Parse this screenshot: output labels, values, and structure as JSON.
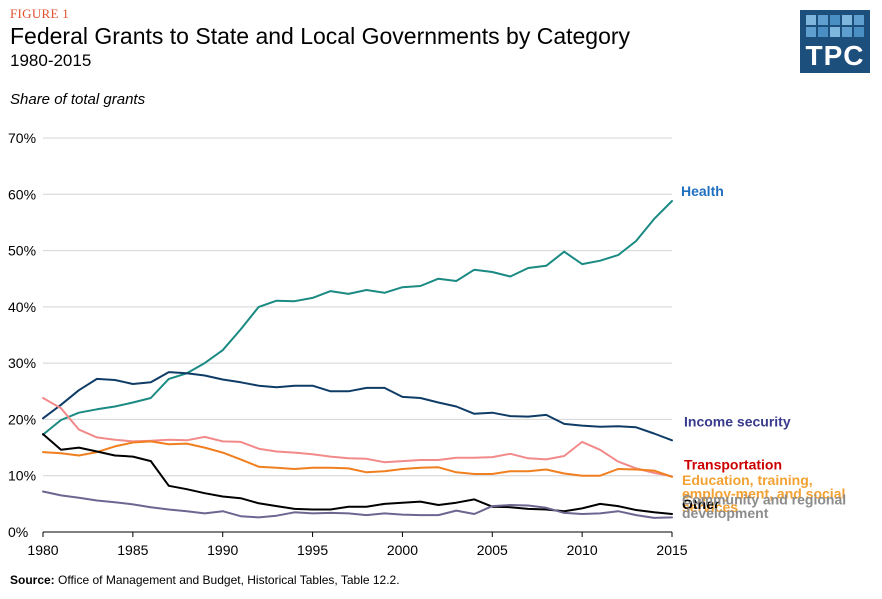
{
  "header": {
    "figure_label": "FIGURE 1",
    "title": "Federal Grants to State and Local Governments by Category",
    "subtitle": "1980-2015",
    "y_axis_note": "Share of total grants"
  },
  "logo": {
    "text": "TPC",
    "color": "#1d4f7c"
  },
  "footer": {
    "source_label": "Source:",
    "source_text": " Office of Management and Budget, Historical Tables, Table 12.2."
  },
  "chart_data": {
    "type": "line",
    "title": "Federal Grants to State and Local Governments by Category",
    "subtitle": "1980-2015",
    "ylabel": "Share of total grants",
    "xlim": [
      1980,
      2015
    ],
    "ylim": [
      0,
      70
    ],
    "x_ticks": [
      1980,
      1985,
      1990,
      1995,
      2000,
      2005,
      2010,
      2015
    ],
    "y_ticks": [
      "0%",
      "10%",
      "20%",
      "30%",
      "40%",
      "50%",
      "60%",
      "70%"
    ],
    "grid": "horizontal",
    "x": [
      1980,
      1981,
      1982,
      1983,
      1984,
      1985,
      1986,
      1987,
      1988,
      1989,
      1990,
      1991,
      1992,
      1993,
      1994,
      1995,
      1996,
      1997,
      1998,
      1999,
      2000,
      2001,
      2002,
      2003,
      2004,
      2005,
      2006,
      2007,
      2008,
      2009,
      2010,
      2011,
      2012,
      2013,
      2014,
      2015
    ],
    "series": [
      {
        "name": "Health",
        "label_lines": [
          "Health"
        ],
        "color": "#1a8a83",
        "label_color": "#1f6fbf",
        "values": [
          17.3,
          19.9,
          21.2,
          21.8,
          22.3,
          23.0,
          23.8,
          27.2,
          28.2,
          30.0,
          32.3,
          36.0,
          40.0,
          41.1,
          41.0,
          41.6,
          42.8,
          42.3,
          43.0,
          42.5,
          43.5,
          43.7,
          45.0,
          44.6,
          46.6,
          46.2,
          45.4,
          46.9,
          47.3,
          49.8,
          47.6,
          48.2,
          49.2,
          51.7,
          55.6,
          58.8
        ]
      },
      {
        "name": "Income security",
        "label_lines": [
          "Income security"
        ],
        "color": "#0f3c66",
        "label_color": "#3a3b8e",
        "values": [
          20.2,
          22.6,
          25.2,
          27.2,
          27.0,
          26.3,
          26.6,
          28.4,
          28.2,
          27.8,
          27.1,
          26.6,
          26.0,
          25.7,
          26.0,
          26.0,
          25.0,
          25.0,
          25.6,
          25.6,
          24.0,
          23.8,
          23.0,
          22.3,
          21.0,
          21.2,
          20.6,
          20.5,
          20.8,
          19.2,
          18.9,
          18.7,
          18.8,
          18.6,
          17.5,
          16.3
        ]
      },
      {
        "name": "Transportation",
        "label_lines": [
          "Transportation"
        ],
        "color": "#f28a8a",
        "label_color": "#cc0000",
        "values": [
          23.8,
          22.0,
          18.2,
          16.8,
          16.4,
          16.1,
          16.2,
          16.4,
          16.3,
          16.9,
          16.1,
          16.0,
          14.8,
          14.3,
          14.1,
          13.8,
          13.4,
          13.1,
          13.0,
          12.4,
          12.6,
          12.8,
          12.8,
          13.2,
          13.2,
          13.3,
          13.9,
          13.1,
          12.9,
          13.5,
          16.0,
          14.6,
          12.5,
          11.3,
          10.5,
          9.9
        ]
      },
      {
        "name": "Education, training, employ-ment, and social services",
        "label_lines": [
          "Education, training,",
          "employ-ment, and social",
          "services"
        ],
        "color": "#f07f1f",
        "label_color": "#f2a132",
        "values": [
          14.2,
          14.0,
          13.6,
          14.2,
          15.2,
          15.9,
          16.1,
          15.6,
          15.7,
          15.0,
          14.1,
          12.9,
          11.6,
          11.4,
          11.2,
          11.4,
          11.4,
          11.3,
          10.6,
          10.8,
          11.2,
          11.4,
          11.5,
          10.6,
          10.3,
          10.3,
          10.8,
          10.8,
          11.1,
          10.4,
          10.0,
          10.0,
          11.2,
          11.1,
          10.9,
          9.8
        ]
      },
      {
        "name": "Other",
        "label_lines": [
          "Other"
        ],
        "color": "#000000",
        "label_color": "#000000",
        "values": [
          17.4,
          14.6,
          15.0,
          14.3,
          13.6,
          13.4,
          12.6,
          8.2,
          7.6,
          6.9,
          6.3,
          6.0,
          5.1,
          4.6,
          4.1,
          4.0,
          4.0,
          4.5,
          4.5,
          5.0,
          5.2,
          5.4,
          4.8,
          5.2,
          5.8,
          4.5,
          4.4,
          4.1,
          4.0,
          3.7,
          4.2,
          5.0,
          4.6,
          3.9,
          3.5,
          3.2
        ]
      },
      {
        "name": "Community and regional development",
        "label_lines": [
          "Community and regional",
          "development"
        ],
        "color": "#6e6590",
        "label_color": "#8c8c8c",
        "values": [
          7.2,
          6.5,
          6.1,
          5.6,
          5.3,
          4.9,
          4.4,
          4.0,
          3.7,
          3.3,
          3.7,
          2.8,
          2.6,
          2.9,
          3.5,
          3.3,
          3.4,
          3.3,
          3.0,
          3.3,
          3.1,
          3.0,
          3.0,
          3.8,
          3.2,
          4.6,
          4.8,
          4.7,
          4.3,
          3.4,
          3.2,
          3.3,
          3.7,
          3.0,
          2.5,
          2.6
        ]
      }
    ]
  }
}
